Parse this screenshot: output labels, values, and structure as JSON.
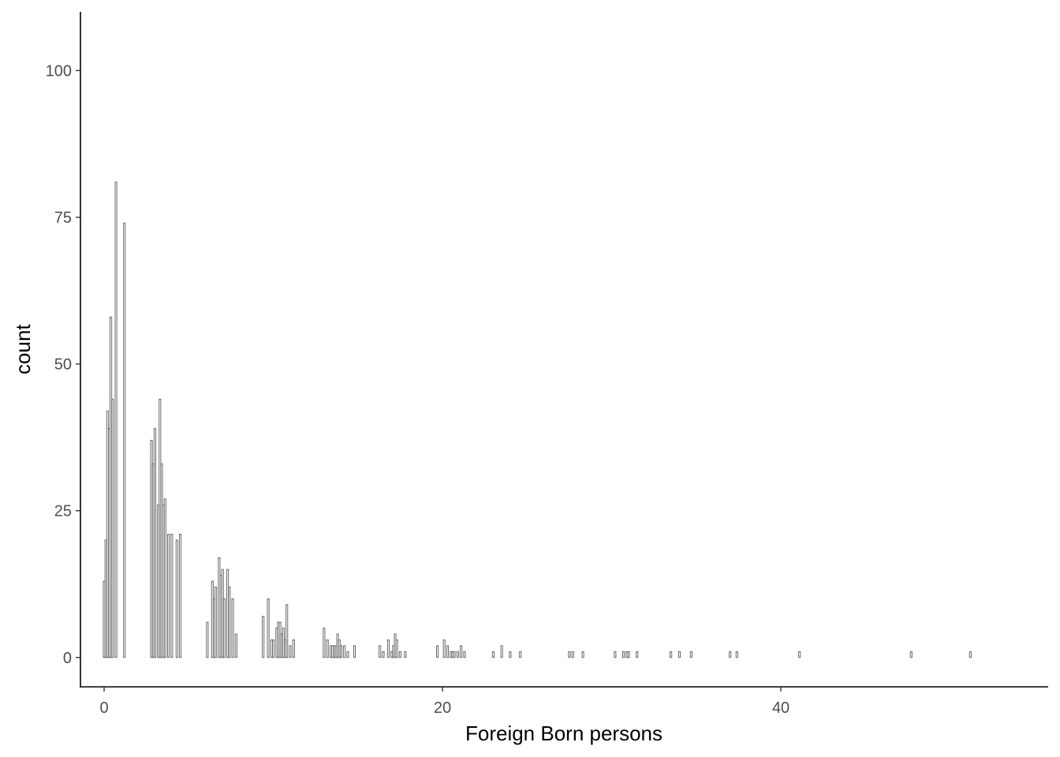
{
  "chart_data": {
    "type": "bar",
    "title": "",
    "xlabel": "Foreign Born persons",
    "ylabel": "count",
    "xlim": [
      -1.4,
      55.8
    ],
    "ylim": [
      -5,
      110
    ],
    "x_ticks": [
      0,
      20,
      40
    ],
    "y_ticks": [
      0,
      25,
      50,
      75,
      100
    ],
    "grid": false,
    "colors": {
      "bar": "#595959",
      "axis": "#000000",
      "tick_text": "#4d4d4d"
    },
    "bar_width": 0.1,
    "x": [
      0.0,
      0.1,
      0.2,
      0.3,
      0.4,
      0.5,
      0.7,
      1.2,
      2.8,
      2.9,
      3.0,
      3.2,
      3.3,
      3.4,
      3.5,
      3.6,
      3.8,
      4.0,
      4.3,
      4.5,
      6.1,
      6.4,
      6.5,
      6.6,
      6.8,
      6.9,
      7.0,
      7.1,
      7.3,
      7.4,
      7.6,
      7.8,
      9.4,
      9.7,
      9.9,
      10.0,
      10.2,
      10.3,
      10.4,
      10.5,
      10.6,
      10.7,
      10.8,
      11.0,
      11.2,
      13.0,
      13.2,
      13.4,
      13.5,
      13.6,
      13.7,
      13.8,
      13.9,
      14.0,
      14.2,
      14.4,
      14.8,
      16.3,
      16.5,
      16.8,
      17.0,
      17.1,
      17.2,
      17.3,
      17.5,
      17.8,
      19.7,
      20.1,
      20.3,
      20.5,
      20.6,
      20.7,
      20.9,
      21.1,
      21.3,
      23.0,
      23.5,
      24.0,
      24.6,
      27.5,
      27.7,
      28.3,
      30.2,
      30.7,
      30.9,
      31.0,
      31.5,
      33.5,
      34.0,
      34.7,
      37.0,
      37.4,
      41.1,
      47.7,
      51.2
    ],
    "values": [
      13,
      20,
      42,
      39,
      58,
      44,
      81,
      74,
      37,
      33,
      39,
      26,
      44,
      33,
      26,
      27,
      21,
      21,
      20,
      21,
      6,
      13,
      10,
      12,
      17,
      14,
      15,
      10,
      15,
      12,
      10,
      4,
      7,
      10,
      3,
      3,
      5,
      6,
      6,
      4,
      5,
      3,
      9,
      2,
      3,
      5,
      3,
      2,
      2,
      2,
      2,
      4,
      3,
      2,
      2,
      1,
      2,
      2,
      1,
      3,
      1,
      2,
      4,
      3,
      1,
      1,
      2,
      3,
      2,
      1,
      1,
      1,
      1,
      2,
      1,
      1,
      2,
      1,
      1,
      1,
      1,
      1,
      1,
      1,
      1,
      1,
      1,
      1,
      1,
      1,
      1,
      1,
      1,
      1,
      1
    ]
  }
}
